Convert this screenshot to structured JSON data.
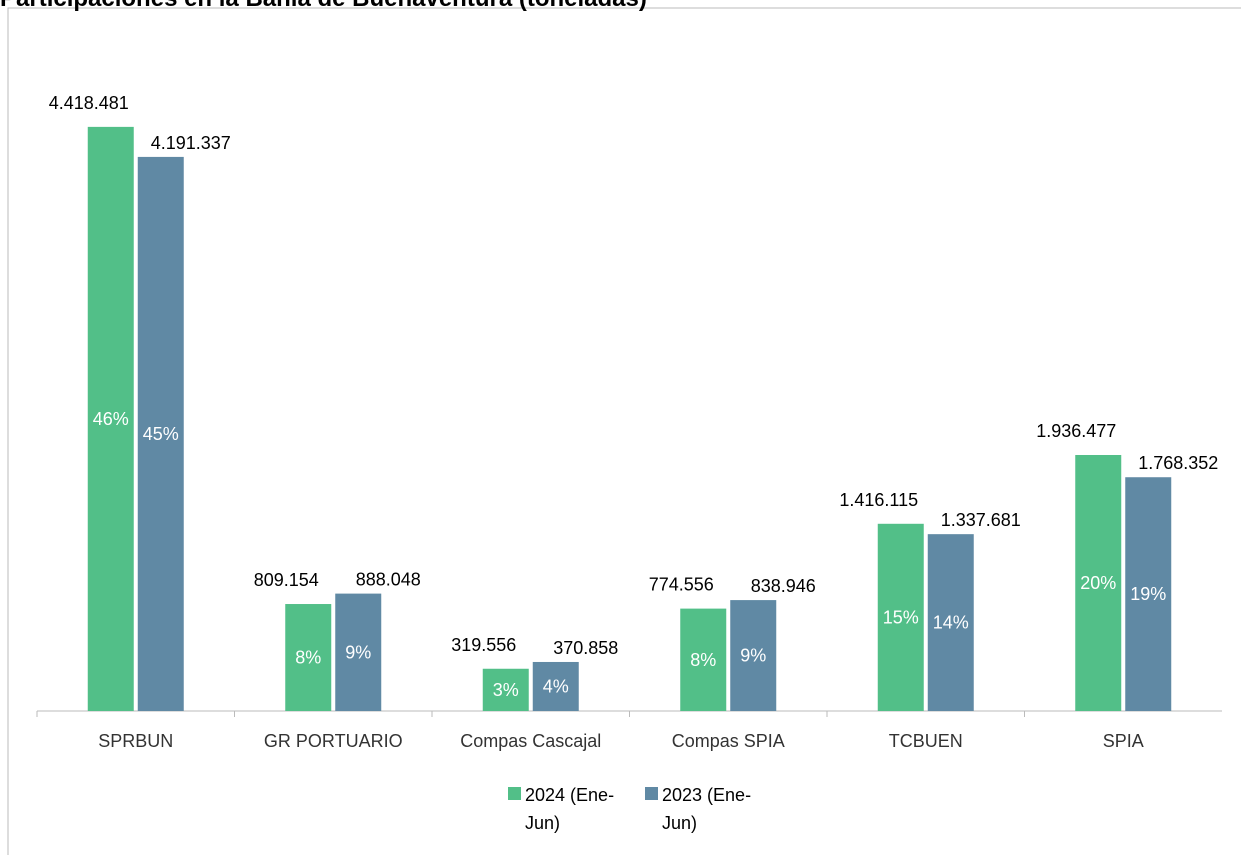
{
  "chart_data": {
    "type": "bar",
    "title": "Participaciones en la Bahía de Buenaventura (toneladas)",
    "categories": [
      "SPRBUN",
      "GR PORTUARIO",
      "Compas Cascajal",
      "Compas SPIA",
      "TCBUEN",
      "SPIA"
    ],
    "ylim": [
      0,
      5000000
    ],
    "grid": false,
    "series": [
      {
        "name": "2024 (Ene-Jun)",
        "color": "#52bf88",
        "values": [
          4418481,
          809154,
          319556,
          774556,
          1416115,
          1936477
        ],
        "value_labels": [
          "4.418.481",
          "809.154",
          "319.556",
          "774.556",
          "1.416.115",
          "1.936.477"
        ],
        "shares": [
          46,
          8,
          3,
          8,
          15,
          20
        ],
        "share_labels": [
          "46%",
          "8%",
          "3%",
          "8%",
          "15%",
          "20%"
        ]
      },
      {
        "name": "2023 (Ene-Jun)",
        "color": "#6089a4",
        "values": [
          4191337,
          888048,
          370858,
          838946,
          1337681,
          1768352
        ],
        "value_labels": [
          "4.191.337",
          "888.048",
          "370.858",
          "838.946",
          "1.337.681",
          "1.768.352"
        ],
        "shares": [
          45,
          9,
          4,
          9,
          14,
          19
        ],
        "share_labels": [
          "45%",
          "9%",
          "4%",
          "9%",
          "14%",
          "19%"
        ]
      }
    ]
  }
}
